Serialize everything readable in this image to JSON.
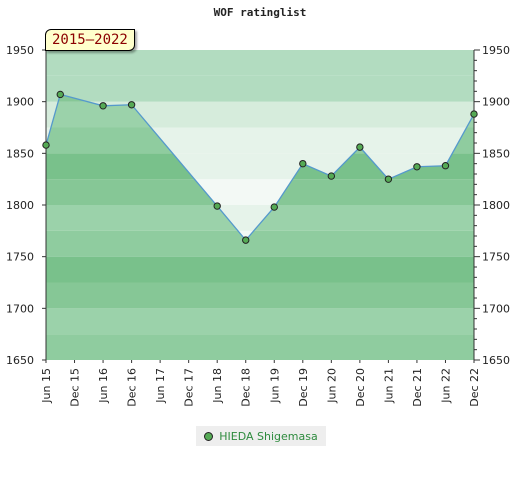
{
  "chart_data": {
    "type": "area",
    "title": "WOF ratinglist",
    "period_label": "2015–2022",
    "ylim": [
      1650,
      1950
    ],
    "y_ticks": [
      1650,
      1700,
      1750,
      1800,
      1850,
      1900,
      1950
    ],
    "y_axis": "both",
    "grid": "horizontal bands",
    "legend_position": "bottom-center",
    "categories": [
      "Jun 15",
      "Dec 15",
      "Jun 16",
      "Dec 16",
      "Jun 17",
      "Dec 17",
      "Jun 18",
      "Dec 18",
      "Jun 19",
      "Dec 19",
      "Jun 20",
      "Dec 20",
      "Jun 21",
      "Dec 21",
      "Jun 22",
      "Dec 22"
    ],
    "series": [
      {
        "name": "HIEDA Shigemasa",
        "color": "#5599cc",
        "fill": "#8fcc9f",
        "marker_color": "#55aa55",
        "points": [
          {
            "x": "Jun 15",
            "y": 1858
          },
          {
            "x": "Sep 15",
            "y": 1907
          },
          {
            "x": "Jun 16",
            "y": 1896
          },
          {
            "x": "Dec 16",
            "y": 1897
          },
          {
            "x": "Jun 18",
            "y": 1799
          },
          {
            "x": "Dec 18",
            "y": 1766
          },
          {
            "x": "Jun 19",
            "y": 1798
          },
          {
            "x": "Dec 19",
            "y": 1840
          },
          {
            "x": "Jun 20",
            "y": 1828
          },
          {
            "x": "Dec 20",
            "y": 1856
          },
          {
            "x": "Jun 21",
            "y": 1825
          },
          {
            "x": "Dec 21",
            "y": 1837
          },
          {
            "x": "Jun 22",
            "y": 1838
          },
          {
            "x": "Dec 22",
            "y": 1888
          }
        ]
      }
    ]
  }
}
